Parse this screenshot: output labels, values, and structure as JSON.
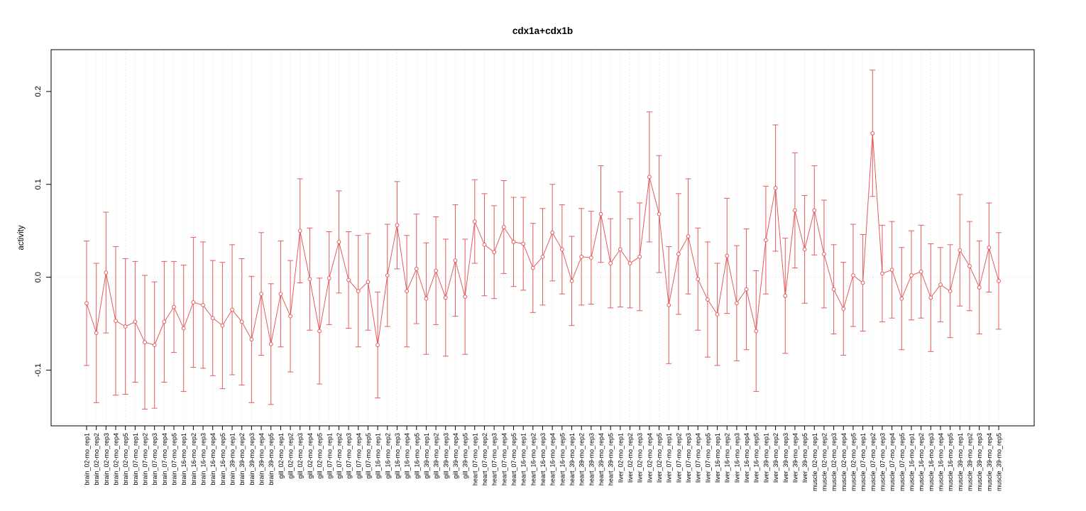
{
  "page": {
    "background": "#ffffff"
  },
  "chart_data": {
    "type": "scatter",
    "title": "cdx1a+cdx1b",
    "xlabel": "",
    "ylabel": "activity",
    "ylim": [
      -0.16,
      0.245
    ],
    "yticks": [
      -0.1,
      0.0,
      0.1,
      0.2
    ],
    "grid": "vertical-dotted-per-category, dotted zero line",
    "legend": "none",
    "series_color": "#e25c5c",
    "point_style": "open-circle with error bars, connected by line",
    "categories": [
      "brain_02-mo_rep1",
      "brain_02-mo_rep2",
      "brain_02-mo_rep3",
      "brain_02-mo_rep4",
      "brain_02-mo_rep5",
      "brain_07-mo_rep1",
      "brain_07-mo_rep2",
      "brain_07-mo_rep3",
      "brain_07-mo_rep4",
      "brain_07-mo_rep5",
      "brain_16-mo_rep1",
      "brain_16-mo_rep2",
      "brain_16-mo_rep3",
      "brain_16-mo_rep4",
      "brain_16-mo_rep5",
      "brain_39-mo_rep1",
      "brain_39-mo_rep2",
      "brain_39-mo_rep3",
      "brain_39-mo_rep4",
      "brain_39-mo_rep5",
      "gill_02-mo_rep1",
      "gill_02-mo_rep2",
      "gill_02-mo_rep3",
      "gill_02-mo_rep4",
      "gill_02-mo_rep5",
      "gill_07-mo_rep1",
      "gill_07-mo_rep2",
      "gill_07-mo_rep3",
      "gill_07-mo_rep4",
      "gill_07-mo_rep5",
      "gill_16-mo_rep1",
      "gill_16-mo_rep2",
      "gill_16-mo_rep3",
      "gill_16-mo_rep4",
      "gill_16-mo_rep5",
      "gill_39-mo_rep1",
      "gill_39-mo_rep2",
      "gill_39-mo_rep3",
      "gill_39-mo_rep4",
      "gill_39-mo_rep5",
      "heart_07-mo_rep1",
      "heart_07-mo_rep2",
      "heart_07-mo_rep3",
      "heart_07-mo_rep4",
      "heart_07-mo_rep5",
      "heart_16-mo_rep1",
      "heart_16-mo_rep2",
      "heart_16-mo_rep3",
      "heart_16-mo_rep4",
      "heart_16-mo_rep5",
      "heart_39-mo_rep1",
      "heart_39-mo_rep2",
      "heart_39-mo_rep3",
      "heart_39-mo_rep4",
      "heart_39-mo_rep5",
      "liver_02-mo_rep1",
      "liver_02-mo_rep2",
      "liver_02-mo_rep3",
      "liver_02-mo_rep4",
      "liver_02-mo_rep5",
      "liver_07-mo_rep1",
      "liver_07-mo_rep2",
      "liver_07-mo_rep3",
      "liver_07-mo_rep4",
      "liver_07-mo_rep5",
      "liver_16-mo_rep1",
      "liver_16-mo_rep2",
      "liver_16-mo_rep3",
      "liver_16-mo_rep4",
      "liver_16-mo_rep5",
      "liver_39-mo_rep1",
      "liver_39-mo_rep2",
      "liver_39-mo_rep3",
      "liver_39-mo_rep4",
      "liver_39-mo_rep5",
      "muscle_02-mo_rep1",
      "muscle_02-mo_rep2",
      "muscle_02-mo_rep3",
      "muscle_02-mo_rep4",
      "muscle_02-mo_rep5",
      "muscle_07-mo_rep1",
      "muscle_07-mo_rep2",
      "muscle_07-mo_rep3",
      "muscle_07-mo_rep4",
      "muscle_07-mo_rep5",
      "muscle_16-mo_rep1",
      "muscle_16-mo_rep2",
      "muscle_16-mo_rep3",
      "muscle_16-mo_rep4",
      "muscle_16-mo_rep5",
      "muscle_39-mo_rep1",
      "muscle_39-mo_rep2",
      "muscle_39-mo_rep3",
      "muscle_39-mo_rep4",
      "muscle_39-mo_rep5"
    ],
    "values": [
      -0.028,
      -0.06,
      0.005,
      -0.047,
      -0.053,
      -0.048,
      -0.07,
      -0.073,
      -0.048,
      -0.032,
      -0.055,
      -0.027,
      -0.03,
      -0.044,
      -0.052,
      -0.035,
      -0.048,
      -0.067,
      -0.018,
      -0.072,
      -0.018,
      -0.042,
      0.05,
      -0.002,
      -0.058,
      -0.001,
      0.038,
      -0.003,
      -0.015,
      -0.005,
      -0.073,
      0.002,
      0.056,
      -0.015,
      0.009,
      -0.023,
      0.007,
      -0.022,
      0.018,
      -0.021,
      0.06,
      0.035,
      0.027,
      0.054,
      0.038,
      0.036,
      0.01,
      0.022,
      0.048,
      0.03,
      -0.004,
      0.022,
      0.021,
      0.068,
      0.015,
      0.03,
      0.015,
      0.022,
      0.108,
      0.068,
      -0.03,
      0.025,
      0.044,
      -0.002,
      -0.024,
      -0.04,
      0.023,
      -0.028,
      -0.013,
      -0.058,
      0.04,
      0.096,
      -0.02,
      0.072,
      0.03,
      0.072,
      0.025,
      -0.013,
      -0.034,
      0.002,
      -0.006,
      0.155,
      0.004,
      0.008,
      -0.023,
      0.002,
      0.006,
      -0.022,
      -0.008,
      -0.015,
      0.029,
      0.012,
      -0.011,
      0.032,
      -0.004
    ],
    "errors": [
      0.067,
      0.075,
      0.065,
      0.08,
      0.073,
      0.065,
      0.072,
      0.068,
      0.065,
      0.049,
      0.068,
      0.07,
      0.068,
      0.062,
      0.068,
      0.07,
      0.068,
      0.068,
      0.066,
      0.065,
      0.057,
      0.06,
      0.056,
      0.055,
      0.057,
      0.05,
      0.055,
      0.052,
      0.06,
      0.052,
      0.057,
      0.055,
      0.047,
      0.06,
      0.059,
      0.06,
      0.058,
      0.063,
      0.06,
      0.062,
      0.045,
      0.055,
      0.05,
      0.05,
      0.048,
      0.05,
      0.048,
      0.052,
      0.052,
      0.048,
      0.048,
      0.052,
      0.05,
      0.052,
      0.048,
      0.062,
      0.048,
      0.058,
      0.07,
      0.063,
      0.063,
      0.065,
      0.062,
      0.055,
      0.062,
      0.055,
      0.062,
      0.062,
      0.065,
      0.065,
      0.058,
      0.068,
      0.062,
      0.062,
      0.058,
      0.048,
      0.058,
      0.048,
      0.05,
      0.055,
      0.052,
      0.068,
      0.052,
      0.052,
      0.055,
      0.048,
      0.05,
      0.058,
      0.04,
      0.05,
      0.06,
      0.048,
      0.05,
      0.048,
      0.052
    ]
  }
}
